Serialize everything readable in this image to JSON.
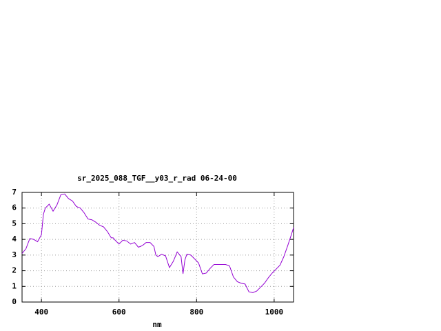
{
  "chart_data": {
    "type": "line",
    "title": "sr_2025_088_TGF__y03_r_rad 06-24-00",
    "x_label": "nm",
    "xlim": [
      350,
      1050
    ],
    "xticks": [
      400,
      600,
      800,
      1000
    ],
    "ylim": [
      0,
      7
    ],
    "yticks": [
      0,
      1,
      2,
      3,
      4,
      5,
      6,
      7
    ],
    "grid": true,
    "series": [
      {
        "name": "sr_2025_088_TGF__y03_r_rad",
        "color": "#9400d3",
        "x": [
          350,
          360,
          370,
          380,
          390,
          400,
          405,
          410,
          420,
          430,
          440,
          450,
          460,
          470,
          480,
          490,
          500,
          510,
          520,
          530,
          540,
          550,
          560,
          570,
          580,
          585,
          590,
          600,
          610,
          620,
          630,
          640,
          650,
          660,
          670,
          680,
          690,
          695,
          700,
          710,
          720,
          730,
          740,
          750,
          760,
          765,
          770,
          775,
          785,
          795,
          805,
          815,
          825,
          835,
          845,
          855,
          865,
          875,
          885,
          895,
          905,
          915,
          925,
          935,
          945,
          955,
          965,
          975,
          985,
          995,
          1005,
          1015,
          1025,
          1035,
          1045,
          1050
        ],
        "values": [
          3.1,
          3.4,
          4.05,
          4.0,
          3.85,
          4.3,
          5.6,
          6.0,
          6.25,
          5.8,
          6.2,
          6.85,
          6.9,
          6.6,
          6.45,
          6.1,
          6.0,
          5.7,
          5.3,
          5.25,
          5.1,
          4.9,
          4.8,
          4.5,
          4.1,
          4.1,
          3.95,
          3.7,
          3.95,
          3.9,
          3.7,
          3.8,
          3.5,
          3.6,
          3.8,
          3.8,
          3.55,
          3.0,
          2.9,
          3.05,
          2.95,
          2.2,
          2.6,
          3.2,
          2.9,
          1.8,
          2.7,
          3.05,
          3.0,
          2.75,
          2.5,
          1.8,
          1.85,
          2.15,
          2.4,
          2.4,
          2.4,
          2.4,
          2.3,
          1.6,
          1.3,
          1.2,
          1.15,
          0.65,
          0.6,
          0.7,
          0.95,
          1.2,
          1.55,
          1.85,
          2.1,
          2.35,
          2.9,
          3.6,
          4.35,
          4.75
        ]
      }
    ]
  }
}
